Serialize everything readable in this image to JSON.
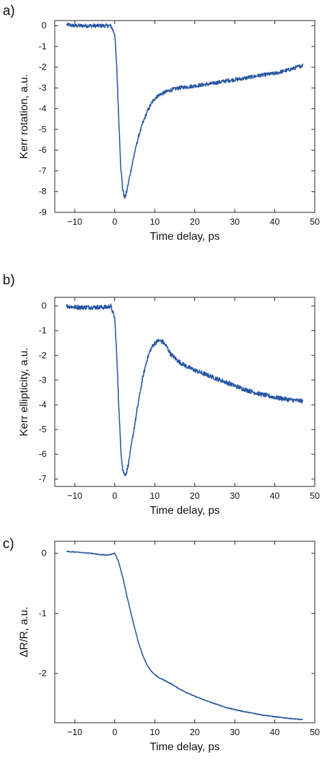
{
  "chart_data": [
    {
      "type": "line",
      "panel_label": "a)",
      "title": "",
      "xlabel": "Time delay, ps",
      "ylabel": "Kerr rotation, a.u.",
      "xlim": [
        -15,
        50
      ],
      "ylim": [
        -9,
        0.25
      ],
      "xticks": [
        -10,
        0,
        10,
        20,
        30,
        40,
        50
      ],
      "xtick_labels": [
        "−10",
        "0",
        "10",
        "20",
        "30",
        "40",
        "50"
      ],
      "yticks": [
        0,
        -1,
        -2,
        -3,
        -4,
        -5,
        -6,
        -7,
        -8,
        -9
      ],
      "ytick_labels": [
        "0",
        "-1",
        "-2",
        "-3",
        "-4",
        "-5",
        "-6",
        "-7",
        "-8",
        "-9"
      ],
      "grid": false,
      "color": "#2656a3",
      "series": [
        {
          "x": [
            -12,
            -10,
            -8,
            -6,
            -4,
            -2,
            -1,
            0,
            0.5,
            1,
            1.5,
            2,
            2.5,
            3,
            4,
            5,
            6,
            7,
            8,
            9,
            10,
            11,
            12,
            14,
            16,
            18,
            20,
            24,
            28,
            32,
            36,
            40,
            44,
            47
          ],
          "y": [
            0.05,
            0.0,
            0.0,
            0.0,
            0.0,
            0.0,
            0.0,
            -0.4,
            -2.0,
            -4.5,
            -6.8,
            -7.9,
            -8.3,
            -8.0,
            -7.0,
            -6.1,
            -5.3,
            -4.7,
            -4.2,
            -3.8,
            -3.5,
            -3.35,
            -3.25,
            -3.1,
            -3.0,
            -2.95,
            -2.9,
            -2.8,
            -2.65,
            -2.55,
            -2.4,
            -2.3,
            -2.1,
            -1.9
          ]
        }
      ]
    },
    {
      "type": "line",
      "panel_label": "b)",
      "title": "",
      "xlabel": "Time delay, ps",
      "ylabel": "Kerr ellipticity, a.u.",
      "xlim": [
        -15,
        50
      ],
      "ylim": [
        -7.3,
        0.35
      ],
      "xticks": [
        -10,
        0,
        10,
        20,
        30,
        40,
        50
      ],
      "xtick_labels": [
        "−10",
        "0",
        "10",
        "20",
        "30",
        "40",
        "50"
      ],
      "yticks": [
        0,
        -1,
        -2,
        -3,
        -4,
        -5,
        -6,
        -7
      ],
      "ytick_labels": [
        "0",
        "-1",
        "-2",
        "-3",
        "-4",
        "-5",
        "-6",
        "-7"
      ],
      "grid": false,
      "color": "#2656a3",
      "series": [
        {
          "x": [
            -12,
            -10,
            -8,
            -6,
            -4,
            -2,
            -1,
            0,
            0.5,
            1,
            1.5,
            2,
            2.5,
            3,
            3.5,
            4,
            5,
            6,
            7,
            8,
            9,
            10,
            11,
            12,
            13,
            14,
            16,
            18,
            20,
            24,
            28,
            32,
            36,
            40,
            44,
            47
          ],
          "y": [
            0.0,
            -0.05,
            -0.05,
            -0.05,
            -0.05,
            -0.05,
            0.0,
            -0.5,
            -2.0,
            -4.0,
            -5.8,
            -6.6,
            -6.85,
            -6.7,
            -6.3,
            -5.8,
            -4.8,
            -3.8,
            -2.9,
            -2.2,
            -1.75,
            -1.5,
            -1.4,
            -1.45,
            -1.65,
            -1.95,
            -2.25,
            -2.45,
            -2.6,
            -2.85,
            -3.1,
            -3.35,
            -3.55,
            -3.7,
            -3.8,
            -3.85
          ]
        }
      ]
    },
    {
      "type": "line",
      "panel_label": "c)",
      "title": "",
      "xlabel": "Time delay, ps",
      "ylabel": "ΔR/R, a.u.",
      "xlim": [
        -15,
        50
      ],
      "ylim": [
        -2.82,
        0.2
      ],
      "xticks": [
        -10,
        0,
        10,
        20,
        30,
        40,
        50
      ],
      "xtick_labels": [
        "−10",
        "0",
        "10",
        "20",
        "30",
        "40",
        "50"
      ],
      "yticks": [
        0,
        -1,
        -2
      ],
      "ytick_labels": [
        "0",
        "-1",
        "-2"
      ],
      "grid": false,
      "color": "#2656a3",
      "series": [
        {
          "x": [
            -12,
            -10,
            -8,
            -6,
            -4,
            -2,
            -1,
            0,
            1,
            2,
            3,
            4,
            5,
            6,
            7,
            8,
            9,
            10,
            11,
            12,
            14,
            16,
            18,
            20,
            24,
            28,
            32,
            36,
            40,
            44,
            47
          ],
          "y": [
            0.03,
            0.02,
            0.01,
            0.0,
            -0.02,
            -0.03,
            -0.02,
            0.0,
            -0.15,
            -0.4,
            -0.7,
            -0.98,
            -1.25,
            -1.5,
            -1.7,
            -1.85,
            -1.95,
            -2.02,
            -2.07,
            -2.1,
            -2.17,
            -2.25,
            -2.32,
            -2.38,
            -2.48,
            -2.57,
            -2.63,
            -2.68,
            -2.72,
            -2.75,
            -2.77
          ]
        }
      ]
    }
  ]
}
